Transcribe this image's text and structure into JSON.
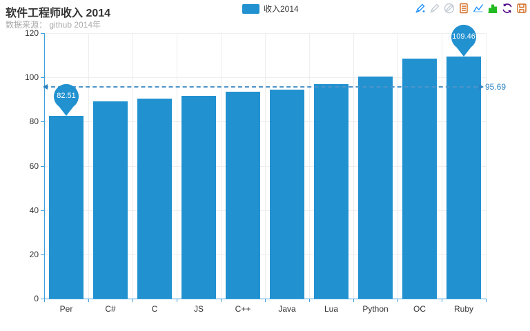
{
  "header": {
    "title": "软件工程师收入 2014",
    "subtitle": "数据来源： github 2014年"
  },
  "legend": {
    "items": [
      {
        "label": "收入2014",
        "color": "#2191d0"
      }
    ]
  },
  "toolbox": {
    "icons": [
      {
        "name": "mark-line-icon",
        "color": "#1e90ff"
      },
      {
        "name": "mark-undo-icon",
        "color": "#c3cbd4"
      },
      {
        "name": "mark-clear-icon",
        "color": "#c3cbd4"
      },
      {
        "name": "data-view-icon",
        "color": "#d2691e"
      },
      {
        "name": "line-chart-icon",
        "color": "#1e90ff"
      },
      {
        "name": "bar-chart-icon",
        "color": "#22bb22"
      },
      {
        "name": "restore-icon",
        "color": "#4b0082"
      },
      {
        "name": "save-image-icon",
        "color": "#d2691e"
      }
    ]
  },
  "chart_data": {
    "type": "bar",
    "title": "软件工程师收入 2014",
    "categories": [
      "Per",
      "C#",
      "C",
      "JS",
      "C++",
      "Java",
      "Lua",
      "Python",
      "OC",
      "Ruby"
    ],
    "series": [
      {
        "name": "收入2014",
        "color": "#2191d0",
        "values": [
          82.51,
          88.99,
          90.45,
          91.6,
          93.45,
          94.53,
          96.93,
          100.48,
          108.5,
          109.46
        ]
      }
    ],
    "ylim": [
      0,
      120
    ],
    "ytick_interval": 20,
    "grid": true,
    "legend_position": "top-center",
    "markpoints": [
      {
        "category": "Per",
        "kind": "min",
        "value": 82.51,
        "label": "82.51"
      },
      {
        "category": "Ruby",
        "kind": "max",
        "value": 109.46,
        "label": "109.46"
      }
    ],
    "markline": {
      "kind": "average",
      "value": 95.69,
      "label": "95.69"
    },
    "axis_color": "#3fa0dc",
    "grid_color": "#eeeeee",
    "label_color": "#333333"
  }
}
